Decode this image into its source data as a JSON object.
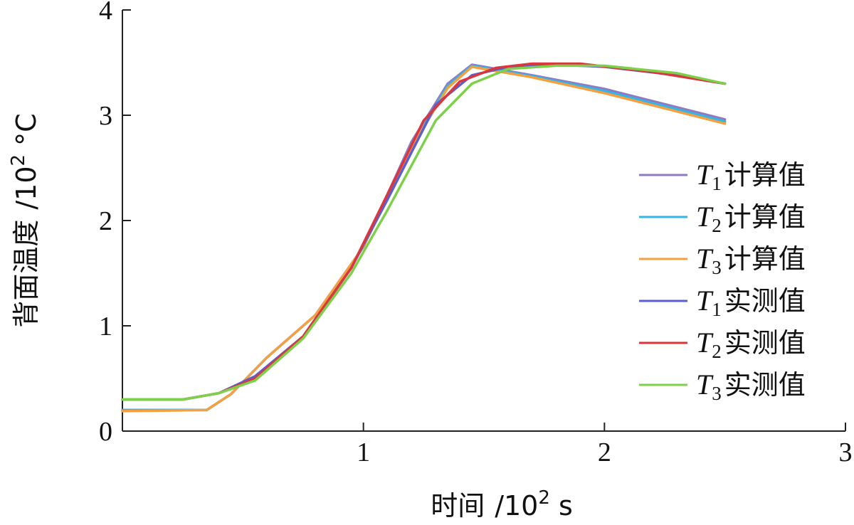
{
  "chart_data": {
    "type": "line",
    "xlabel": {
      "main": "时间",
      "unit_prefix": "/10",
      "exp": "2",
      "unit": " s"
    },
    "ylabel": {
      "main": "背面温度",
      "unit_prefix": "/10",
      "exp": "2",
      "unit": " °C"
    },
    "xlim": [
      0,
      3
    ],
    "ylim": [
      0,
      4
    ],
    "xticks": [
      "0",
      "1",
      "2",
      "3"
    ],
    "yticks": [
      "0",
      "1",
      "2",
      "3",
      "4"
    ],
    "legend_position": "right",
    "series": [
      {
        "name": "T1计算值",
        "symbol": "T",
        "sub": "1",
        "suffix": "计算值",
        "color": "#8e7bc4",
        "x": [
          0,
          0.35,
          0.45,
          0.6,
          0.8,
          1.0,
          1.2,
          1.35,
          1.45,
          1.5,
          1.7,
          2.0,
          2.5
        ],
        "y": [
          0.2,
          0.2,
          0.35,
          0.7,
          1.1,
          1.75,
          2.75,
          3.3,
          3.48,
          3.46,
          3.38,
          3.25,
          2.96
        ]
      },
      {
        "name": "T2计算值",
        "symbol": "T",
        "sub": "2",
        "suffix": "计算值",
        "color": "#33b5e5",
        "x": [
          0,
          0.35,
          0.45,
          0.6,
          0.8,
          1.0,
          1.2,
          1.35,
          1.45,
          1.5,
          1.7,
          2.0,
          2.5
        ],
        "y": [
          0.2,
          0.2,
          0.35,
          0.7,
          1.1,
          1.75,
          2.72,
          3.28,
          3.47,
          3.45,
          3.37,
          3.23,
          2.94
        ]
      },
      {
        "name": "T3计算值",
        "symbol": "T",
        "sub": "3",
        "suffix": "计算值",
        "color": "#f5a040",
        "x": [
          0,
          0.35,
          0.45,
          0.6,
          0.8,
          1.0,
          1.2,
          1.35,
          1.45,
          1.5,
          1.7,
          2.0,
          2.5
        ],
        "y": [
          0.19,
          0.2,
          0.35,
          0.7,
          1.1,
          1.75,
          2.7,
          3.26,
          3.46,
          3.44,
          3.36,
          3.21,
          2.92
        ]
      },
      {
        "name": "T1实测值",
        "symbol": "T",
        "sub": "1",
        "suffix": "实测值",
        "color": "#5a5fd0",
        "x": [
          0,
          0.25,
          0.4,
          0.55,
          0.75,
          0.95,
          1.1,
          1.3,
          1.45,
          1.6,
          1.8,
          2.0,
          2.3,
          2.5
        ],
        "y": [
          0.3,
          0.3,
          0.36,
          0.52,
          0.9,
          1.55,
          2.2,
          3.1,
          3.38,
          3.46,
          3.48,
          3.46,
          3.38,
          3.3
        ]
      },
      {
        "name": "T2实测值",
        "symbol": "T",
        "sub": "2",
        "suffix": "实测值",
        "color": "#d9363e",
        "x": [
          0,
          0.25,
          0.4,
          0.55,
          0.75,
          0.95,
          1.1,
          1.25,
          1.4,
          1.55,
          1.7,
          1.9,
          2.2,
          2.5
        ],
        "y": [
          0.3,
          0.3,
          0.36,
          0.5,
          0.9,
          1.55,
          2.25,
          2.95,
          3.32,
          3.45,
          3.49,
          3.49,
          3.41,
          3.3
        ]
      },
      {
        "name": "T3实测值",
        "symbol": "T",
        "sub": "3",
        "suffix": "实测值",
        "color": "#7ed04a",
        "x": [
          0,
          0.25,
          0.4,
          0.55,
          0.75,
          0.95,
          1.1,
          1.3,
          1.45,
          1.6,
          1.8,
          2.0,
          2.3,
          2.5
        ],
        "y": [
          0.3,
          0.3,
          0.36,
          0.48,
          0.88,
          1.5,
          2.1,
          2.95,
          3.3,
          3.44,
          3.47,
          3.47,
          3.4,
          3.3
        ]
      }
    ]
  }
}
